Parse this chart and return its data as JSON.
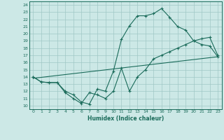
{
  "xlabel": "Humidex (Indice chaleur)",
  "xlim": [
    -0.5,
    23.5
  ],
  "ylim": [
    9.5,
    24.5
  ],
  "xticks": [
    0,
    1,
    2,
    3,
    4,
    5,
    6,
    7,
    8,
    9,
    10,
    11,
    12,
    13,
    14,
    15,
    16,
    17,
    18,
    19,
    20,
    21,
    22,
    23
  ],
  "yticks": [
    10,
    11,
    12,
    13,
    14,
    15,
    16,
    17,
    18,
    19,
    20,
    21,
    22,
    23,
    24
  ],
  "bg_color": "#cce8e6",
  "grid_color": "#a0c8c6",
  "line_color": "#1a6b5a",
  "line1_x": [
    0,
    1,
    2,
    3,
    4,
    5,
    6,
    7,
    8,
    9,
    10,
    11,
    12,
    13,
    14,
    15,
    16,
    17,
    18,
    19,
    20,
    21,
    22,
    23
  ],
  "line1_y": [
    14.0,
    13.3,
    13.2,
    13.2,
    11.8,
    11.0,
    10.3,
    11.8,
    11.5,
    11.0,
    12.0,
    15.2,
    12.0,
    14.0,
    15.0,
    16.5,
    17.0,
    17.5,
    18.0,
    18.5,
    19.0,
    19.3,
    19.5,
    17.0
  ],
  "line2_x": [
    0,
    1,
    2,
    3,
    4,
    5,
    6,
    7,
    8,
    9,
    10,
    11,
    12,
    13,
    14,
    15,
    16,
    17,
    18,
    19,
    20,
    21,
    22,
    23
  ],
  "line2_y": [
    14.0,
    13.3,
    13.2,
    13.2,
    12.0,
    11.5,
    10.5,
    10.2,
    12.3,
    12.0,
    14.8,
    19.2,
    21.1,
    22.5,
    22.5,
    22.8,
    23.5,
    22.3,
    21.0,
    20.5,
    19.0,
    18.5,
    18.3,
    16.8
  ],
  "line3_x": [
    0,
    23
  ],
  "line3_y": [
    13.8,
    16.8
  ]
}
